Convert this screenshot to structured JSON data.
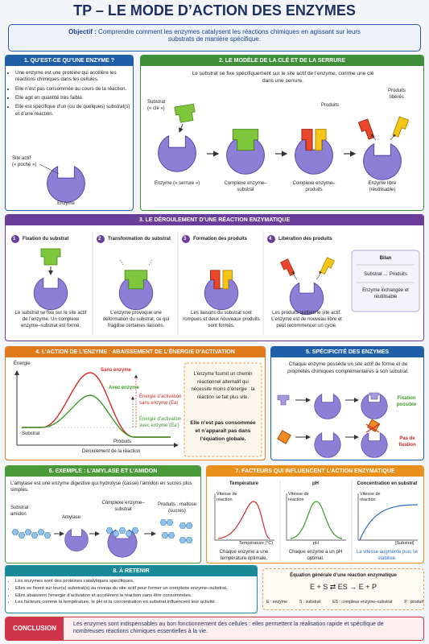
{
  "header": {
    "title": "TP – LE MODE D’ACTION DES ENZYMES",
    "objective_label": "Objectif :",
    "objective": "Comprendre comment les enzymes catalysent les réactions chimiques en agissant sur leurs substrats de manière spécifique."
  },
  "section1": {
    "title": "1. QU’EST-CE QU’UNE ENZYME ?",
    "bullets": [
      "Une enzyme est une protéine qui accélère les réactions chimiques dans les cellules.",
      "Elle n’est pas consommée au cours de la réaction.",
      "Elle agit en quantité très faible.",
      "Elle est spécifique d’un (ou de quelques) substrat(s) et d’une réaction."
    ],
    "active_site": "Site actif",
    "pocket": "(« poche »)",
    "enzyme": "Enzyme"
  },
  "section2": {
    "title": "2. LE MODÈLE DE LA CLÉ ET DE LA SERRURE",
    "intro": "Le substrat se fixe spécifiquement sur le site actif de l’enzyme, comme une clé dans une serrure.",
    "substrate": "Substrat",
    "key": "(« clé »)",
    "products": "Produits",
    "released": "Produits libérés",
    "captions": [
      "Enzyme (« serrure »)",
      "Complexe enzyme–substrat",
      "Complexe enzyme–produits",
      "Enzyme libre (réutilisable)"
    ]
  },
  "section3": {
    "title": "3. LE DÉROULEMENT D’UNE RÉACTION ENZYMATIQUE",
    "steps": [
      {
        "number": "1",
        "title": "Fixation du substrat",
        "text": "Le substrat se fixe sur le site actif de l’enzyme. Un complexe enzyme–substrat est formé."
      },
      {
        "number": "2",
        "title": "Transformation du substrat",
        "text": "L’enzyme provoque une déformation du substrat, ce qui fragilise certaines liaisons."
      },
      {
        "number": "3",
        "title": "Formation des produits",
        "text": "Les liaisons du substrat sont rompues et deux nouveaux produits sont formés."
      },
      {
        "number": "4",
        "title": "Libération des produits",
        "text": "Les produits quittent le site actif. L’enzyme est de nouveau libre et peut recommencer un cycle."
      }
    ],
    "summary": {
      "title": "Bilan",
      "equation": "Substrat → Produits",
      "note": "Enzyme inchangée et réutilisable"
    }
  },
  "section4": {
    "title": "4. L’ACTION DE L’ENZYME : ABAISSEMENT DE L’ÉNERGIE D’ACTIVATION",
    "y_label": "Énergie",
    "without": "Sans enzyme",
    "with": "Avec enzyme",
    "ea_without": "Énergie d’activation sans enzyme (Ea)",
    "ea_with": "Énergie d’activation avec enzyme (Ea’)",
    "substrate": "Substrat",
    "products": "Produits",
    "x_label": "Déroulement de la réaction",
    "box_text": "L’enzyme fournit un chemin réactionnel alternatif qui nécessite moins d’énergie : la réaction se fait plus vite.",
    "box_bold": "Elle n’est pas consommée et n’apparaît pas dans l’équation globale."
  },
  "section5": {
    "title": "5. SPÉCIFICITÉ DES ENZYMES",
    "intro": "Chaque enzyme possède un site actif de forme et de propriétés chimiques complémentaires à son substrat.",
    "possible": "Fixation possible",
    "impossible": "Pas de fixation"
  },
  "section6": {
    "title": "6. EXEMPLE : L’AMYLASE ET L’AMIDON",
    "intro": "L’amylase est une enzyme digestive qui hydrolyse (casse) l’amidon en sucres plus simples.",
    "substrate": "Substrat : amidon",
    "enzyme": "Amylase",
    "complex": "Complexe enzyme–substrat",
    "products": "Produits : maltose (sucres)"
  },
  "section7": {
    "title": "7. FACTEURS QUI INFLUENCENT L’ACTION ENZYMATIQUE",
    "panels": [
      {
        "title": "Température",
        "y_label": "Vitesse de réaction",
        "x_label": "Température (°C)",
        "caption": "Chaque enzyme a une température optimale."
      },
      {
        "title": "pH",
        "y_label": "Vitesse de réaction",
        "x_label": "pH",
        "caption": "Chaque enzyme a un pH optimal."
      },
      {
        "title": "Concentration en substrat",
        "y_label": "Vitesse de réaction",
        "x_label": "[Substrat]",
        "caption": "La vitesse augmente puis se stabilise."
      }
    ]
  },
  "section8": {
    "title": "8. À RETENIR",
    "bullets": [
      "Les enzymes sont des protéines catalytiques spécifiques.",
      "Elles se fixent sur leur(s) substrat(s) au niveau du site actif pour former un complexe enzyme–substrat.",
      "Elles abaissent l’énergie d’activation et accélèrent la réaction sans être consommées.",
      "Les facteurs comme la température, le pH et la concentration en substrat influencent leur activité."
    ]
  },
  "equation": {
    "title": "Équation générale d’une réaction enzymatique",
    "formula": "E + S ⇄ ES → E + P",
    "legend": [
      "E : enzyme",
      "S : substrat",
      "ES : complexe enzyme–substrat",
      "P : produit"
    ]
  },
  "conclusion": {
    "label": "CONCLUSION",
    "text": "Les enzymes sont indispensables au bon fonctionnement des cellules : elles permettent la réalisation rapide et spécifique de nombreuses réactions chimiques essentielles à la vie."
  }
}
